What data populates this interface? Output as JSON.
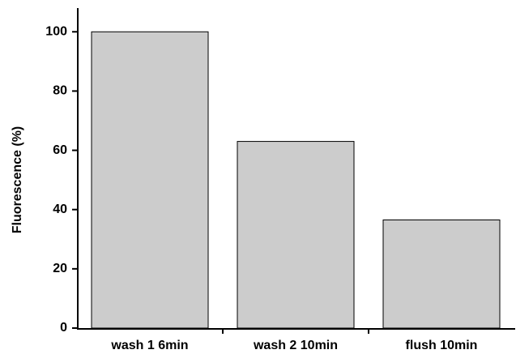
{
  "chart_data": {
    "type": "bar",
    "ylabel": "Fluorescence (%)",
    "categories": [
      "wash 1 6min",
      "wash 2 10min",
      "flush 10min"
    ],
    "values": [
      100,
      63,
      36.5
    ],
    "color": "#cccccc",
    "ylim": [
      0,
      108
    ],
    "yticks": [
      0,
      20,
      40,
      60,
      80,
      100
    ]
  }
}
